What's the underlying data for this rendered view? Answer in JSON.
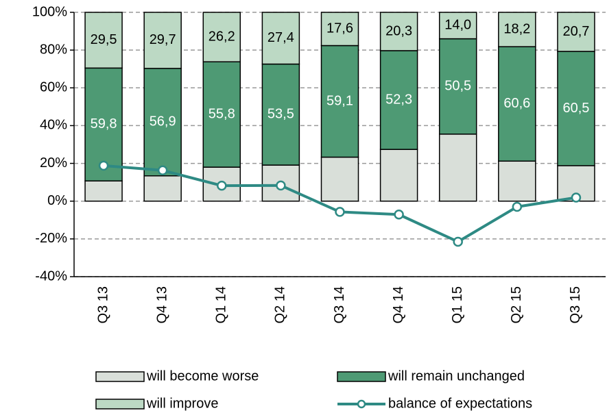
{
  "chart_data": {
    "type": "stacked_bar_line",
    "categories": [
      "Q3 13",
      "Q4 13",
      "Q1 14",
      "Q2 14",
      "Q3 14",
      "Q4 14",
      "Q1 15",
      "Q2 15",
      "Q3 15"
    ],
    "series": [
      {
        "name": "will become worse",
        "color": "#d9dfd9",
        "values": [
          10.7,
          13.4,
          18.0,
          19.1,
          23.3,
          27.4,
          35.5,
          21.2,
          18.8
        ]
      },
      {
        "name": "will remain unchanged",
        "color": "#4e9a74",
        "values": [
          59.8,
          56.9,
          55.8,
          53.5,
          59.1,
          52.3,
          50.5,
          60.6,
          60.5
        ],
        "value_labels": [
          "59,8",
          "56,9",
          "55,8",
          "53,5",
          "59,1",
          "52,3",
          "50,5",
          "60,6",
          "60,5"
        ]
      },
      {
        "name": "will improve",
        "color": "#bcd9c4",
        "values": [
          29.5,
          29.7,
          26.2,
          27.4,
          17.6,
          20.3,
          14.0,
          18.2,
          20.7
        ],
        "value_labels": [
          "29,5",
          "29,7",
          "26,2",
          "27,4",
          "17,6",
          "20,3",
          "14,0",
          "18,2",
          "20,7"
        ]
      },
      {
        "name": "balance of expectations",
        "color": "#2e8a84",
        "type": "line",
        "values": [
          18.8,
          16.3,
          8.2,
          8.3,
          -5.7,
          -7.1,
          -21.5,
          -3.0,
          1.9
        ]
      }
    ],
    "ylim": [
      -40,
      100
    ],
    "yticks": [
      {
        "value": -40,
        "label": "-40%"
      },
      {
        "value": -20,
        "label": "-20%"
      },
      {
        "value": 0,
        "label": "0%"
      },
      {
        "value": 20,
        "label": "20%"
      },
      {
        "value": 40,
        "label": "40%"
      },
      {
        "value": 60,
        "label": "60%"
      },
      {
        "value": 80,
        "label": "80%"
      },
      {
        "value": 100,
        "label": "100%"
      }
    ],
    "grid": true
  }
}
